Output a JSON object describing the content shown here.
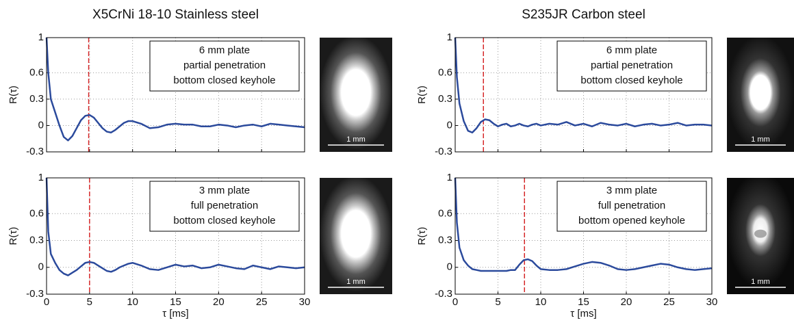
{
  "chart_data": [
    {
      "type": "line",
      "title": "X5CrNi 18-10 Stainless steel",
      "ylabel": "R(τ)",
      "annotation": [
        "6 mm plate",
        "partial penetration",
        "bottom closed keyhole"
      ],
      "inset_scale_label": "1 mm",
      "xlim": [
        0,
        30
      ],
      "xticks": [
        0,
        5,
        10,
        15,
        20,
        25,
        30
      ],
      "show_xtick_labels": false,
      "ylim": [
        -0.3,
        1
      ],
      "yticks": [
        -0.3,
        0,
        0.3,
        0.6,
        1
      ],
      "grid": true,
      "vline": 4.9,
      "vline_color": "#d62728",
      "series": [
        {
          "color": "#2b4a9c",
          "x": [
            0,
            0.2,
            0.5,
            1,
            1.5,
            2,
            2.5,
            3,
            3.5,
            4,
            4.5,
            5,
            5.5,
            6,
            6.5,
            7,
            7.5,
            8,
            8.5,
            9,
            9.5,
            10,
            11,
            12,
            13,
            14,
            15,
            16,
            17,
            18,
            19,
            20,
            21,
            22,
            23,
            24,
            25,
            26,
            27,
            28,
            29,
            30
          ],
          "values": [
            1,
            0.6,
            0.3,
            0.15,
            0,
            -0.13,
            -0.17,
            -0.12,
            -0.03,
            0.06,
            0.11,
            0.12,
            0.09,
            0.03,
            -0.03,
            -0.07,
            -0.08,
            -0.05,
            -0.01,
            0.03,
            0.05,
            0.05,
            0.02,
            -0.03,
            -0.02,
            0.01,
            0.02,
            0.01,
            0.01,
            -0.01,
            -0.01,
            0.01,
            0,
            -0.02,
            0,
            0.01,
            -0.01,
            0.02,
            0.01,
            0,
            -0.01,
            -0.02
          ]
        }
      ]
    },
    {
      "type": "line",
      "title": "S235JR Carbon steel",
      "ylabel": "R(τ)",
      "annotation": [
        "6 mm plate",
        "partial penetration",
        "bottom closed keyhole"
      ],
      "inset_scale_label": "1 mm",
      "xlim": [
        0,
        30
      ],
      "xticks": [
        0,
        5,
        10,
        15,
        20,
        25,
        30
      ],
      "show_xtick_labels": false,
      "ylim": [
        -0.3,
        1
      ],
      "yticks": [
        -0.3,
        0,
        0.3,
        0.6,
        1
      ],
      "grid": true,
      "vline": 3.3,
      "vline_color": "#d62728",
      "series": [
        {
          "color": "#2b4a9c",
          "x": [
            0,
            0.2,
            0.5,
            1,
            1.5,
            2,
            2.5,
            3,
            3.5,
            4,
            4.5,
            5,
            5.5,
            6,
            6.5,
            7,
            7.5,
            8,
            8.5,
            9,
            9.5,
            10,
            11,
            12,
            13,
            14,
            15,
            16,
            17,
            18,
            19,
            20,
            21,
            22,
            23,
            24,
            25,
            26,
            27,
            28,
            29,
            30
          ],
          "values": [
            1,
            0.55,
            0.25,
            0.05,
            -0.06,
            -0.08,
            -0.03,
            0.04,
            0.07,
            0.06,
            0.02,
            -0.01,
            0.01,
            0.02,
            -0.01,
            0,
            0.02,
            0,
            -0.01,
            0.01,
            0.02,
            0,
            0.02,
            0.01,
            0.04,
            0,
            0.02,
            -0.01,
            0.03,
            0.01,
            0,
            0.02,
            -0.01,
            0.01,
            0.02,
            0,
            0.01,
            0.03,
            0,
            0.01,
            0.01,
            0
          ]
        }
      ]
    },
    {
      "type": "line",
      "ylabel": "R(τ)",
      "xlabel": "τ [ms]",
      "annotation": [
        "3 mm plate",
        "full penetration",
        "bottom closed keyhole"
      ],
      "inset_scale_label": "1 mm",
      "xlim": [
        0,
        30
      ],
      "xticks": [
        0,
        5,
        10,
        15,
        20,
        25,
        30
      ],
      "show_xtick_labels": true,
      "ylim": [
        -0.3,
        1
      ],
      "yticks": [
        -0.3,
        0,
        0.3,
        0.6,
        1
      ],
      "grid": true,
      "vline": 5.0,
      "vline_color": "#d62728",
      "series": [
        {
          "color": "#2b4a9c",
          "x": [
            0,
            0.2,
            0.5,
            1,
            1.5,
            2,
            2.5,
            3,
            3.5,
            4,
            4.5,
            5,
            5.5,
            6,
            6.5,
            7,
            7.5,
            8,
            8.5,
            9,
            9.5,
            10,
            11,
            12,
            13,
            14,
            15,
            16,
            17,
            18,
            19,
            20,
            21,
            22,
            23,
            24,
            25,
            26,
            27,
            28,
            29,
            30
          ],
          "values": [
            1,
            0.4,
            0.15,
            0.05,
            -0.03,
            -0.07,
            -0.09,
            -0.06,
            -0.03,
            0.01,
            0.05,
            0.06,
            0.05,
            0.02,
            -0.01,
            -0.04,
            -0.05,
            -0.03,
            0,
            0.02,
            0.04,
            0.05,
            0.02,
            -0.02,
            -0.03,
            0,
            0.03,
            0.01,
            0.02,
            -0.01,
            0,
            0.03,
            0.01,
            -0.01,
            -0.02,
            0.02,
            0,
            -0.02,
            0.01,
            0,
            -0.01,
            0
          ]
        }
      ]
    },
    {
      "type": "line",
      "ylabel": "R(τ)",
      "xlabel": "τ [ms]",
      "annotation": [
        "3 mm plate",
        "full penetration",
        "bottom opened keyhole"
      ],
      "inset_scale_label": "1 mm",
      "xlim": [
        0,
        30
      ],
      "xticks": [
        0,
        5,
        10,
        15,
        20,
        25,
        30
      ],
      "show_xtick_labels": true,
      "ylim": [
        -0.3,
        1
      ],
      "yticks": [
        -0.3,
        0,
        0.3,
        0.6,
        1
      ],
      "grid": true,
      "vline": 8.1,
      "vline_color": "#d62728",
      "series": [
        {
          "color": "#2b4a9c",
          "x": [
            0,
            0.2,
            0.5,
            1,
            1.5,
            2,
            2.5,
            3,
            3.5,
            4,
            4.5,
            5,
            5.5,
            6,
            6.5,
            7,
            7.5,
            8,
            8.5,
            9,
            9.5,
            10,
            11,
            12,
            13,
            14,
            15,
            16,
            17,
            18,
            19,
            20,
            21,
            22,
            23,
            24,
            25,
            26,
            27,
            28,
            29,
            30
          ],
          "values": [
            1,
            0.5,
            0.22,
            0.08,
            0.02,
            -0.02,
            -0.03,
            -0.04,
            -0.04,
            -0.04,
            -0.04,
            -0.04,
            -0.04,
            -0.04,
            -0.03,
            -0.03,
            0.03,
            0.08,
            0.09,
            0.07,
            0.02,
            -0.02,
            -0.03,
            -0.03,
            -0.02,
            0.01,
            0.04,
            0.06,
            0.05,
            0.02,
            -0.02,
            -0.03,
            -0.02,
            0,
            0.02,
            0.04,
            0.03,
            0,
            -0.02,
            -0.03,
            -0.02,
            -0.01
          ]
        }
      ]
    }
  ]
}
